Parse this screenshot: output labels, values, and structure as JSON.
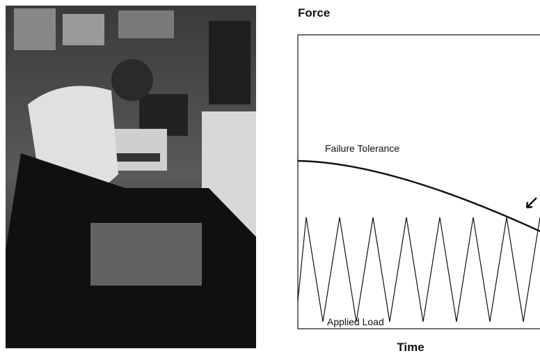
{
  "figure": {
    "y_axis_label": "Force",
    "x_axis_label": "Time",
    "curve_label": "Failure Tolerance",
    "load_label": "Applied Load"
  }
}
